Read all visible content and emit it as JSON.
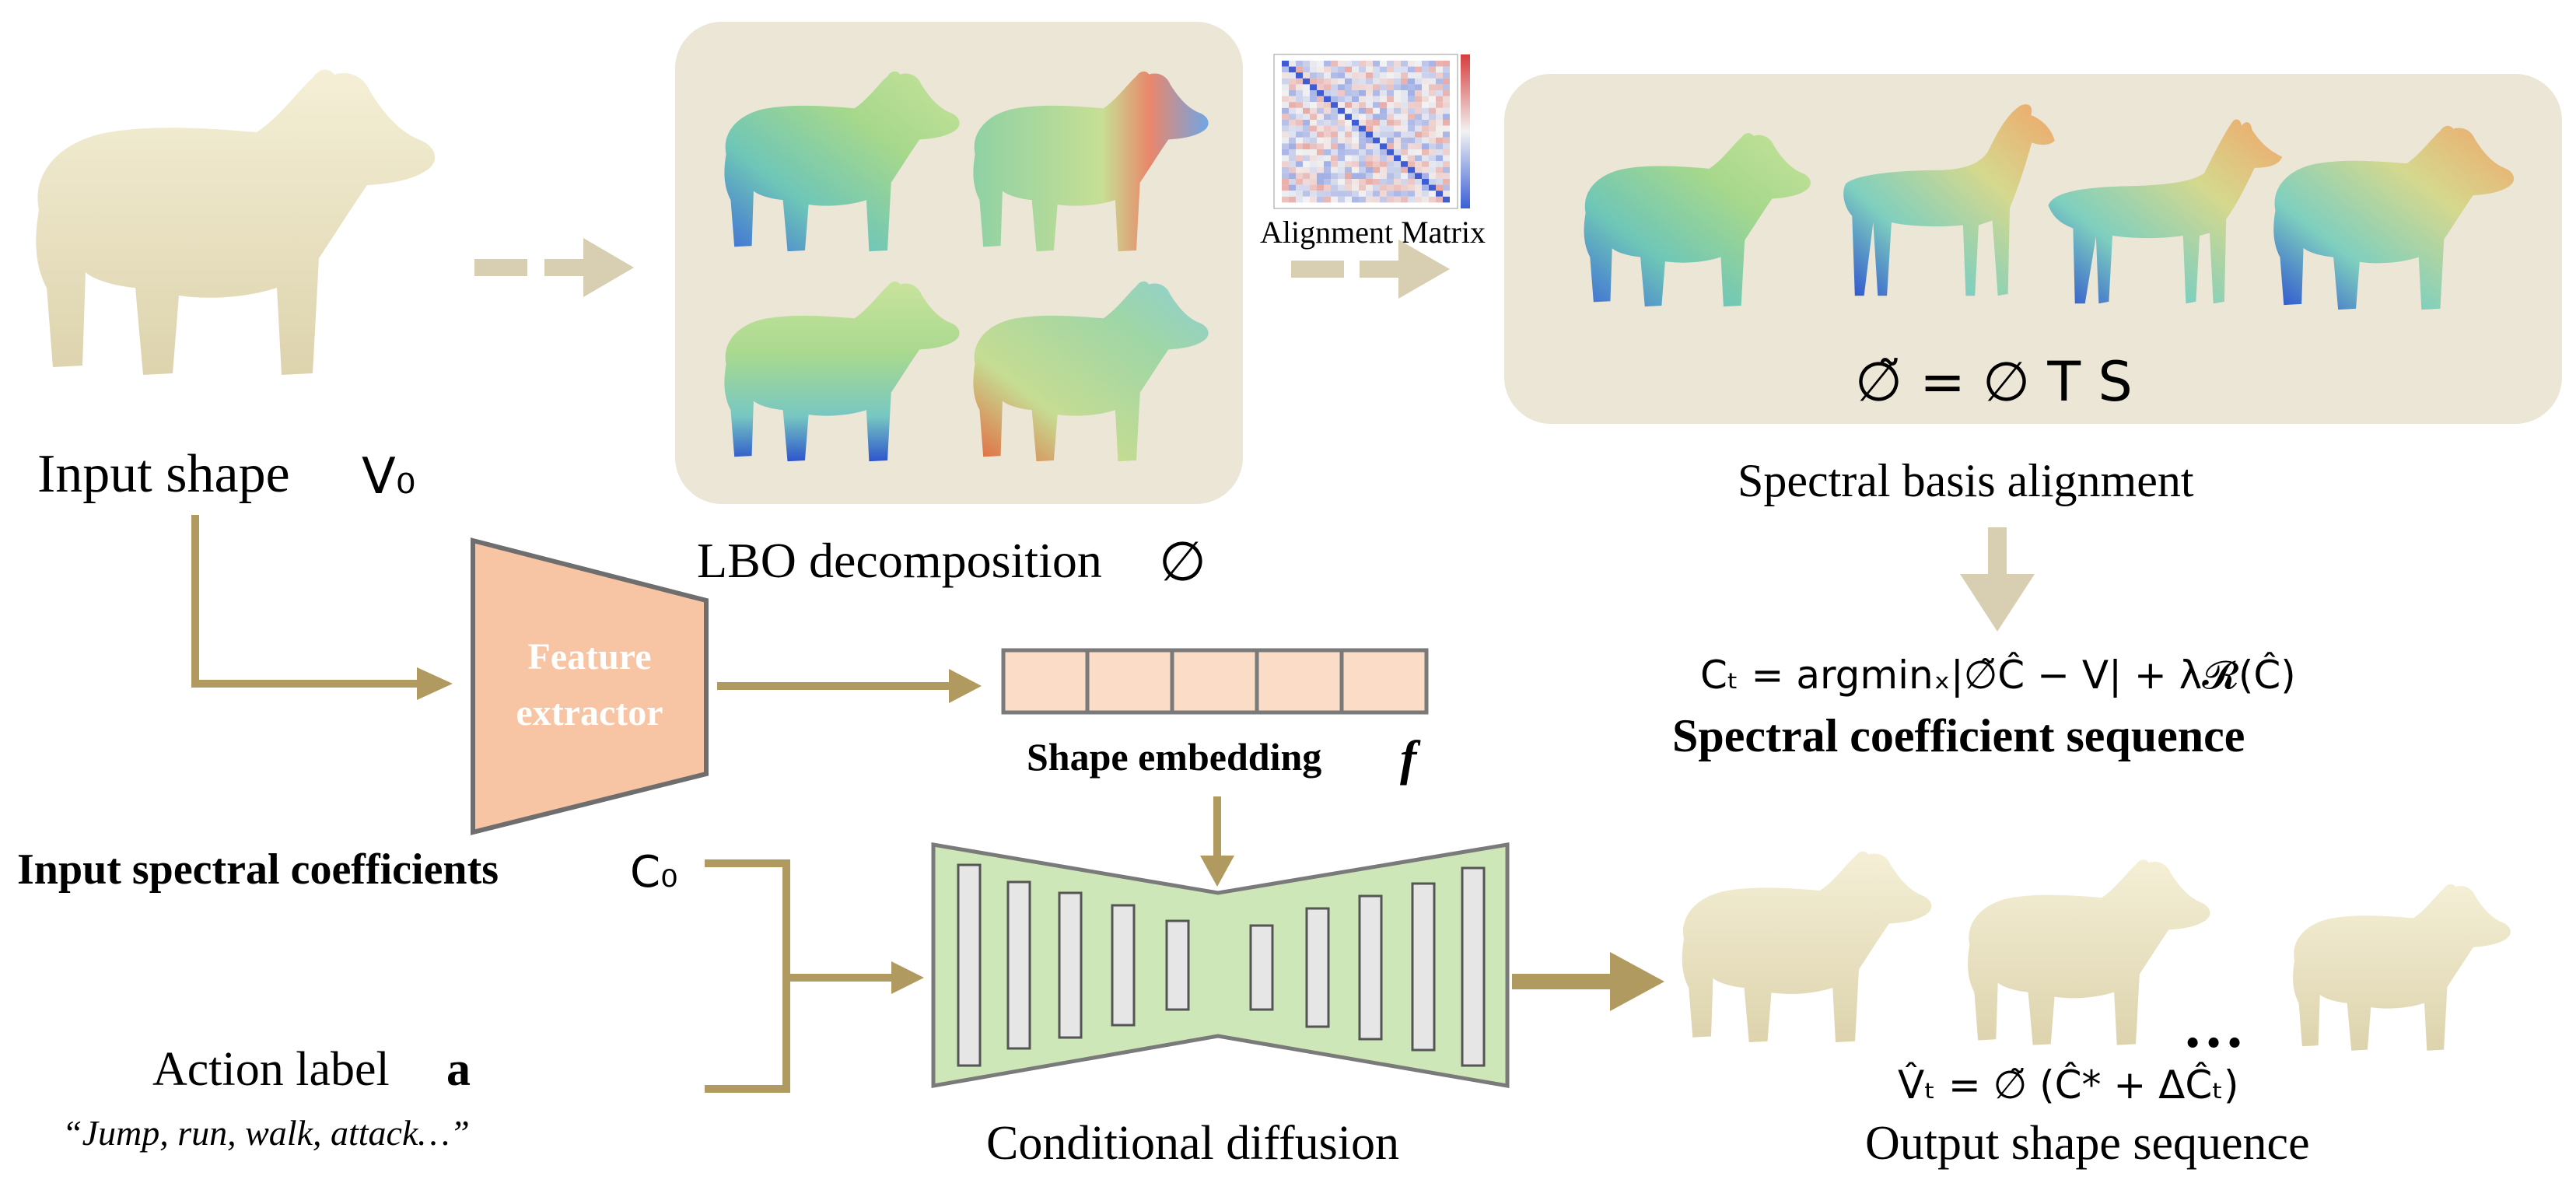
{
  "colors": {
    "arrow": "#b19a5f",
    "arrow_light": "#d8cfb3",
    "panel": "#ebe6d6",
    "shape_cream": "#efe9cc",
    "feature_fill": "#f7c4a4",
    "feature_stroke": "#6e6e6e",
    "embed_fill": "#fbdcc7",
    "unet_fill": "#cde7b8",
    "unet_stroke": "#7a7a7a",
    "unet_bar": "#e6e6e6"
  },
  "icons": {
    "input_shape": "bear-icon",
    "lbo_shapes": "bear-heatmap-icon",
    "aligned_shapes": [
      "bear-heatmap-icon",
      "deer-heatmap-icon",
      "wolf-heatmap-icon",
      "bear-heatmap-icon"
    ],
    "output_shapes": [
      "bear-icon",
      "bear-icon",
      "bear-icon"
    ]
  },
  "labels": {
    "input_shape": "Input shape",
    "input_shape_math": "V₀",
    "lbo": "LBO decomposition",
    "lbo_math": "∅",
    "alignment_matrix": "Alignment Matrix",
    "alignment_formula": "∅̃ = ∅ T S",
    "spectral_basis_alignment": "Spectral basis alignment",
    "coeff_formula": "Cₜ = argminₓ|∅̃Ĉ − V| + λ𝓡(Ĉ)",
    "spectral_coeff_sequence": "Spectral coefficient sequence",
    "feature_extractor_line1": "Feature",
    "feature_extractor_line2": "extractor",
    "shape_embedding": "Shape embedding",
    "shape_embedding_math": "f",
    "input_spectral_coeffs": "Input spectral coefficients",
    "input_spectral_coeffs_math": "C₀",
    "action_label": "Action label",
    "action_label_math": "a",
    "action_examples": "“Jump, run, walk, attack…”",
    "conditional_diffusion": "Conditional diffusion",
    "ellipsis": "…",
    "output_formula": "V̂ₜ = ∅̃ (Ĉ* + ΔĈₜ)",
    "output_shape_sequence": "Output shape sequence"
  }
}
